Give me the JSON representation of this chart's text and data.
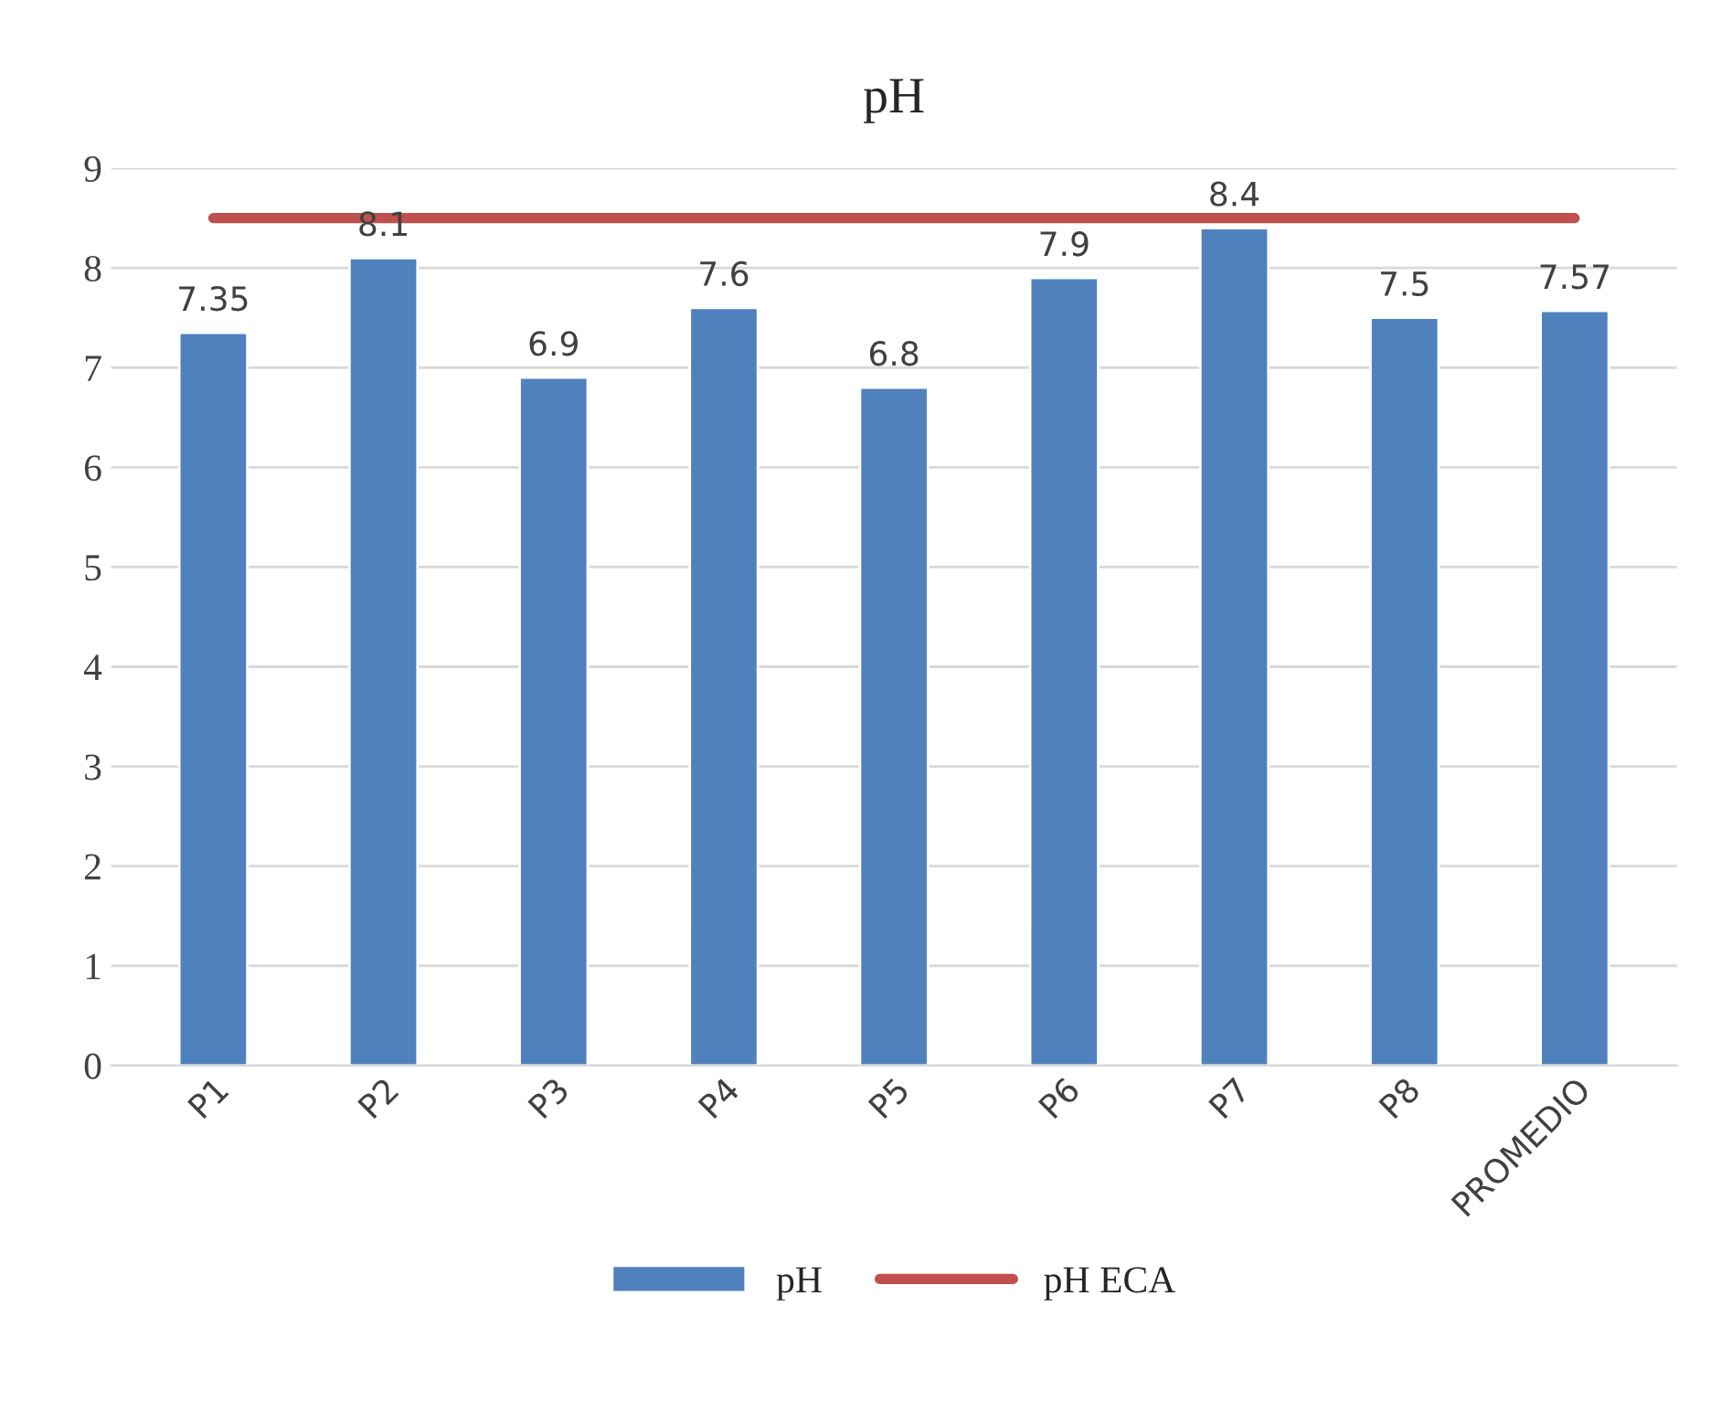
{
  "chart_data": {
    "type": "bar",
    "title": "pH",
    "categories": [
      "P1",
      "P2",
      "P3",
      "P4",
      "P5",
      "P6",
      "P7",
      "P8",
      "PROMEDIO"
    ],
    "series": [
      {
        "name": "pH",
        "color": "#4f81bd",
        "values": [
          7.35,
          8.1,
          6.9,
          7.6,
          6.8,
          7.9,
          8.4,
          7.5,
          7.57
        ],
        "value_labels": [
          "7.35",
          "8.1",
          "6.9",
          "7.6",
          "6.8",
          "7.9",
          "8.4",
          "7.5",
          "7.57"
        ]
      },
      {
        "name": "pH ECA",
        "type": "line",
        "color": "#c0504d",
        "values": [
          8.5,
          8.5,
          8.5,
          8.5,
          8.5,
          8.5,
          8.5,
          8.5,
          8.5
        ]
      }
    ],
    "ylim": [
      0,
      9
    ],
    "yticks": [
      0,
      1,
      2,
      3,
      4,
      5,
      6,
      7,
      8,
      9
    ],
    "grid": "y",
    "legend": "bottom"
  }
}
